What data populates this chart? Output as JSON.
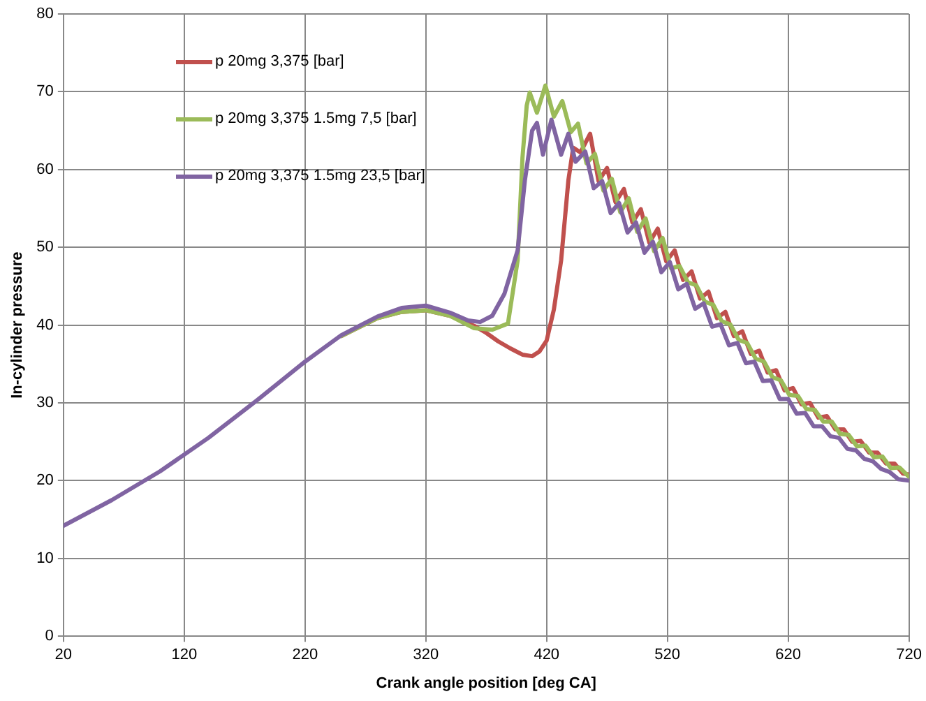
{
  "chart_data": {
    "type": "line",
    "xlabel": "Crank angle position [deg CA]",
    "ylabel": "In-cylinder pressure",
    "xlim": [
      20,
      720
    ],
    "xticks": [
      20,
      120,
      220,
      320,
      420,
      520,
      620,
      720
    ],
    "ylim": [
      0,
      80
    ],
    "yticks": [
      0,
      10,
      20,
      30,
      40,
      50,
      60,
      70,
      80
    ],
    "grid": true,
    "legend": "top left",
    "marker": "none",
    "line_style": "solid",
    "series": [
      {
        "name": "p 20mg 3,375 [bar]",
        "color": "#c0504d",
        "x": [
          250,
          280,
          300,
          320,
          340,
          360,
          370,
          380,
          390,
          400,
          408,
          414,
          420,
          426,
          432,
          438,
          442,
          448,
          456,
          463,
          470,
          477,
          484,
          491,
          498,
          505,
          512,
          519,
          526,
          533,
          540,
          547,
          554,
          561,
          568,
          575,
          582,
          589,
          596,
          603,
          610,
          617,
          624,
          631,
          638,
          645,
          652,
          659,
          666,
          673,
          680,
          687,
          694,
          701,
          708,
          715,
          720
        ],
        "values": [
          38.6,
          40.9,
          41.7,
          41.9,
          41.2,
          39.9,
          39.0,
          37.9,
          37.0,
          36.2,
          36.0,
          36.6,
          38.0,
          42.0,
          48.3,
          58.6,
          62.8,
          62.2,
          64.6,
          58.5,
          60.2,
          55.8,
          57.5,
          53.2,
          54.9,
          50.6,
          52.4,
          48.2,
          49.6,
          45.8,
          46.9,
          43.4,
          44.3,
          40.9,
          41.7,
          38.6,
          39.2,
          36.3,
          36.7,
          33.9,
          34.2,
          31.6,
          31.9,
          29.8,
          30.0,
          28.1,
          28.3,
          26.6,
          26.6,
          25.0,
          25.1,
          23.6,
          23.6,
          22.2,
          22.2,
          20.9,
          20.8
        ]
      },
      {
        "name": "p 20mg 3,375 1.5mg 7,5 [bar]",
        "color": "#9bbb59",
        "x": [
          250,
          280,
          300,
          320,
          340,
          360,
          375,
          388,
          396,
          400,
          403.5,
          406,
          412,
          419,
          426,
          433,
          440,
          446,
          453,
          460,
          467,
          474,
          481,
          488,
          495,
          502,
          509,
          516,
          523,
          530,
          537,
          544,
          551,
          558,
          565,
          572,
          579,
          586,
          593,
          600,
          607,
          614,
          621,
          628,
          635,
          642,
          649,
          656,
          663,
          670,
          677,
          684,
          691,
          698,
          705,
          712,
          720
        ],
        "values": [
          38.6,
          40.9,
          41.7,
          41.9,
          41.2,
          39.6,
          39.4,
          40.2,
          48.3,
          61.5,
          68.2,
          69.9,
          67.3,
          70.8,
          66.8,
          68.8,
          64.8,
          65.9,
          60.8,
          62.0,
          57.3,
          58.8,
          54.5,
          56.3,
          52.0,
          53.7,
          49.5,
          51.2,
          47.3,
          47.6,
          45.5,
          45.1,
          43.0,
          42.6,
          40.5,
          40.1,
          38.1,
          37.7,
          35.7,
          35.3,
          33.3,
          32.9,
          31.0,
          30.9,
          29.2,
          29.1,
          27.6,
          27.6,
          26.0,
          25.9,
          24.4,
          24.5,
          23.0,
          23.1,
          21.6,
          21.7,
          20.5
        ]
      },
      {
        "name": "p 20mg 3,375 1.5mg 23,5 [bar]",
        "color": "#8064a2",
        "x": [
          20,
          60,
          100,
          140,
          180,
          220,
          250,
          280,
          300,
          320,
          340,
          355,
          365,
          375,
          385,
          396,
          402,
          408,
          412,
          417,
          424,
          432,
          438,
          444,
          452,
          459,
          466,
          473,
          480,
          487,
          494,
          501,
          508,
          515,
          522,
          529,
          536,
          543,
          550,
          557,
          564,
          571,
          578,
          585,
          592,
          599,
          606,
          613,
          620,
          627,
          634,
          641,
          648,
          655,
          662,
          669,
          676,
          683,
          690,
          697,
          704,
          711,
          720
        ],
        "values": [
          14.2,
          17.5,
          21.2,
          25.5,
          30.3,
          35.3,
          38.7,
          41.1,
          42.2,
          42.5,
          41.6,
          40.6,
          40.4,
          41.2,
          44.0,
          49.6,
          58.6,
          65.0,
          66.0,
          61.9,
          66.4,
          61.9,
          64.6,
          61.0,
          62.3,
          57.6,
          58.5,
          54.4,
          55.7,
          51.9,
          53.2,
          49.3,
          50.7,
          46.8,
          48.1,
          44.6,
          45.3,
          42.1,
          42.8,
          39.8,
          40.1,
          37.4,
          37.7,
          35.1,
          35.3,
          32.8,
          32.9,
          30.5,
          30.5,
          28.6,
          28.7,
          27.0,
          27.0,
          25.7,
          25.5,
          24.1,
          23.9,
          22.8,
          22.5,
          21.5,
          21.1,
          20.2,
          20.0
        ]
      }
    ]
  }
}
